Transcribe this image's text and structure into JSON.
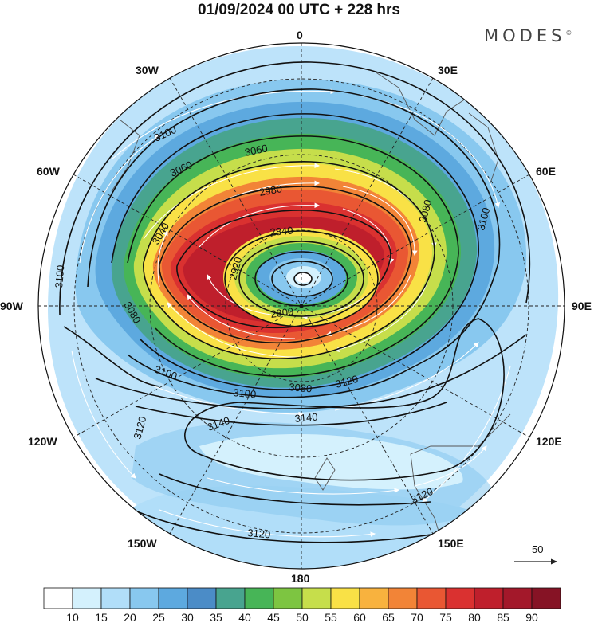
{
  "header": {
    "title": "01/09/2024  00 UTC  + 228 hrs",
    "brand": "MODES",
    "brand_mark": "©"
  },
  "map": {
    "projection": "south-polar-stereographic",
    "longitude_labels": {
      "top": "0",
      "upper_left": "30W",
      "upper_right": "30E",
      "left_upper": "60W",
      "right_upper": "60E",
      "left": "90W",
      "right": "90E",
      "left_lower": "120W",
      "right_lower": "120E",
      "lower_left": "150W",
      "lower_right": "150E",
      "bottom": "180"
    },
    "contour_labels": {
      "c1": "3100",
      "c2": "3060",
      "c3": "3060",
      "c4": "2980",
      "c5": "3040",
      "c6": "2840",
      "c7": "2920",
      "c8": "2800",
      "c9": "3080",
      "c10": "3100",
      "c11": "3080",
      "c12": "3100",
      "c13": "3100",
      "c14": "3080",
      "c15": "3120",
      "c16": "3140",
      "c17": "3140",
      "c18": "3120",
      "c19": "3120",
      "c20": "3120",
      "c21": "3100"
    },
    "vector_reference": "50"
  },
  "colorbar": {
    "colors": [
      "#ffffff",
      "#d4f1fd",
      "#b1def9",
      "#88c8ef",
      "#5da9df",
      "#4b8cc7",
      "#48a48f",
      "#47b557",
      "#7dc541",
      "#c6de4b",
      "#f9e146",
      "#f8b23e",
      "#f28437",
      "#e95733",
      "#da3130",
      "#bf1f2c",
      "#a3182a",
      "#861325"
    ],
    "labels": [
      "10",
      "15",
      "20",
      "25",
      "30",
      "35",
      "40",
      "45",
      "50",
      "55",
      "60",
      "65",
      "70",
      "75",
      "80",
      "85",
      "90"
    ]
  }
}
